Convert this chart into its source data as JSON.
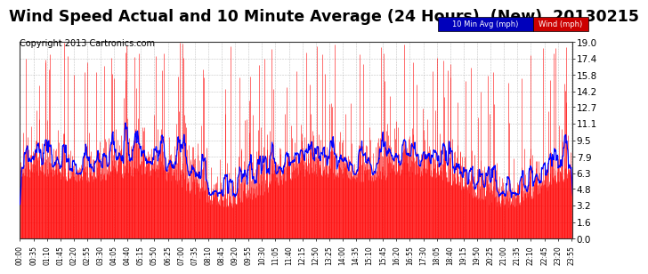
{
  "title": "Wind Speed Actual and 10 Minute Average (24 Hours)  (New)  20130215",
  "copyright": "Copyright 2013 Cartronics.com",
  "legend_labels": [
    "10 Min Avg (mph)",
    "Wind (mph)"
  ],
  "legend_colors_bg": [
    "#0000bb",
    "#cc0000"
  ],
  "legend_text_color": "#ffffff",
  "y_ticks": [
    0.0,
    1.6,
    3.2,
    4.8,
    6.3,
    7.9,
    9.5,
    11.1,
    12.7,
    14.2,
    15.8,
    17.4,
    19.0
  ],
  "ylim": [
    0.0,
    19.0
  ],
  "background_color": "#ffffff",
  "plot_bg_color": "#ffffff",
  "grid_color": "#999999",
  "wind_color": "#ff0000",
  "avg_color": "#0000ff",
  "title_fontsize": 12.5,
  "copyright_fontsize": 7,
  "num_minutes": 1440,
  "tick_interval_minutes": 35
}
